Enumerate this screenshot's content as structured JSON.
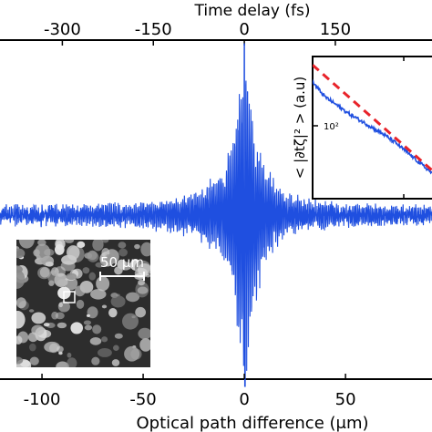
{
  "chart_data": [
    {
      "type": "line",
      "role": "main",
      "xlabel": "Optical path difference (μm)",
      "top_xlabel": "Time delay (fs)",
      "xlim": [
        -123,
        95
      ],
      "x_ticks": [
        -100,
        -50,
        0,
        50
      ],
      "x_tick_labels": [
        "-100",
        "-50",
        "0",
        "50"
      ],
      "top_ticks": [
        -300,
        -150,
        0,
        150
      ],
      "top_tick_labels": [
        "-300",
        "-150",
        "0",
        "150"
      ],
      "ylim": [
        -1.0,
        1.0
      ],
      "series_color": "#1f4fe0",
      "series": [
        {
          "kind": "interferogram",
          "center": 0,
          "peak": 1.0,
          "noise_level": 0.035,
          "x": [
            -123,
            -100,
            -75,
            -50,
            -30,
            -20,
            -10,
            -5,
            -2,
            0,
            2,
            5,
            10,
            20,
            30,
            50,
            75,
            95
          ],
          "envelope": [
            0.03,
            0.04,
            0.05,
            0.06,
            0.1,
            0.15,
            0.25,
            0.55,
            0.9,
            1.0,
            0.85,
            0.55,
            0.3,
            0.12,
            0.08,
            0.05,
            0.04,
            0.03
          ]
        }
      ],
      "grid": false,
      "legend": "none"
    },
    {
      "type": "line",
      "role": "inset",
      "ylabel": "< |∂tζ|² > (a.u)",
      "tick_label": "10²",
      "log_scale": true,
      "series": [
        {
          "kind": "measured",
          "style": "solid",
          "color": "#1f4fe0",
          "x": [
            0.0,
            0.1,
            0.2,
            0.3,
            0.4,
            0.5,
            0.6,
            0.7,
            0.8,
            0.9,
            1.0
          ],
          "y": [
            0.82,
            0.72,
            0.66,
            0.6,
            0.55,
            0.5,
            0.45,
            0.39,
            0.32,
            0.25,
            0.18
          ]
        },
        {
          "kind": "fit",
          "style": "dashed",
          "color": "#e8232a",
          "x": [
            0.0,
            1.0
          ],
          "y": [
            0.94,
            0.2
          ]
        }
      ]
    }
  ],
  "image_inset": {
    "scale_label": "50 μm",
    "colors": {
      "background": "#2d2d2d",
      "speckle": "#d8d8d8"
    }
  }
}
